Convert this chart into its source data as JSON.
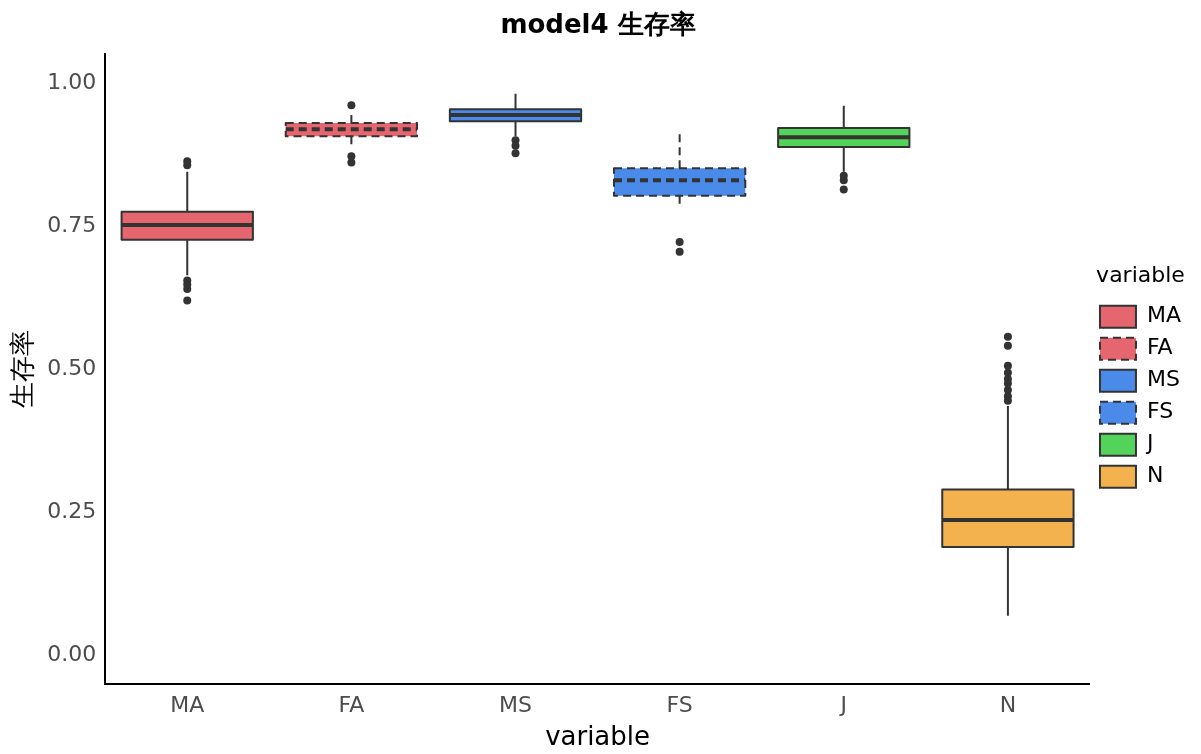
{
  "chart_data": {
    "type": "box",
    "title": "model4 生存率",
    "xlabel": "variable",
    "ylabel": "生存率",
    "legend_title": "variable",
    "legend": "right",
    "grid": false,
    "categories": [
      "MA",
      "FA",
      "MS",
      "FS",
      "J",
      "N"
    ],
    "ylim": [
      -0.05,
      1.05
    ],
    "yticks": [
      {
        "value": 0,
        "label": "0.00"
      },
      {
        "value": 0.25,
        "label": "0.25"
      },
      {
        "value": 0.5,
        "label": "0.50"
      },
      {
        "value": 0.75,
        "label": "0.75"
      },
      {
        "value": 1,
        "label": "1.00"
      }
    ],
    "series": [
      {
        "name": "MA",
        "color": "#e5666f",
        "line_style": "solid",
        "boxes": [
          {
            "low": 0.664,
            "q1": 0.726,
            "median": 0.752,
            "q3": 0.775,
            "high": 0.845,
            "outliers": [
              0.863,
              0.856,
              0.655,
              0.648,
              0.64,
              0.62
            ]
          },
          null,
          null,
          null,
          null,
          null
        ]
      },
      {
        "name": "FA",
        "color": "#e5666f",
        "line_style": "dashed",
        "boxes": [
          null,
          {
            "low": 0.893,
            "q1": 0.907,
            "median": 0.919,
            "q3": 0.93,
            "high": 0.946,
            "outliers": [
              0.961,
              0.872,
              0.861
            ]
          },
          null,
          null,
          null,
          null
        ]
      },
      {
        "name": "MS",
        "color": "#4a8ae8",
        "line_style": "solid",
        "boxes": [
          null,
          null,
          {
            "low": 0.907,
            "q1": 0.933,
            "median": 0.944,
            "q3": 0.954,
            "high": 0.981,
            "outliers": [
              0.9,
              0.89,
              0.877
            ]
          },
          null,
          null,
          null
        ]
      },
      {
        "name": "FS",
        "color": "#4a8ae8",
        "line_style": "dashed",
        "boxes": [
          null,
          null,
          null,
          {
            "low": 0.787,
            "q1": 0.803,
            "median": 0.83,
            "q3": 0.851,
            "high": 0.916,
            "outliers": [
              0.722,
              0.705
            ]
          },
          null,
          null
        ]
      },
      {
        "name": "J",
        "color": "#54d35b",
        "line_style": "solid",
        "boxes": [
          null,
          null,
          null,
          null,
          {
            "low": 0.845,
            "q1": 0.888,
            "median": 0.905,
            "q3": 0.921,
            "high": 0.96,
            "outliers": [
              0.838,
              0.83,
              0.814
            ]
          },
          null
        ]
      },
      {
        "name": "N",
        "color": "#f3b24e",
        "line_style": "solid",
        "boxes": [
          null,
          null,
          null,
          null,
          null,
          {
            "low": 0.07,
            "q1": 0.19,
            "median": 0.237,
            "q3": 0.29,
            "high": 0.436,
            "outliers": [
              0.557,
              0.541,
              0.506,
              0.494,
              0.483,
              0.475,
              0.464,
              0.453,
              0.445
            ]
          }
        ]
      }
    ]
  }
}
